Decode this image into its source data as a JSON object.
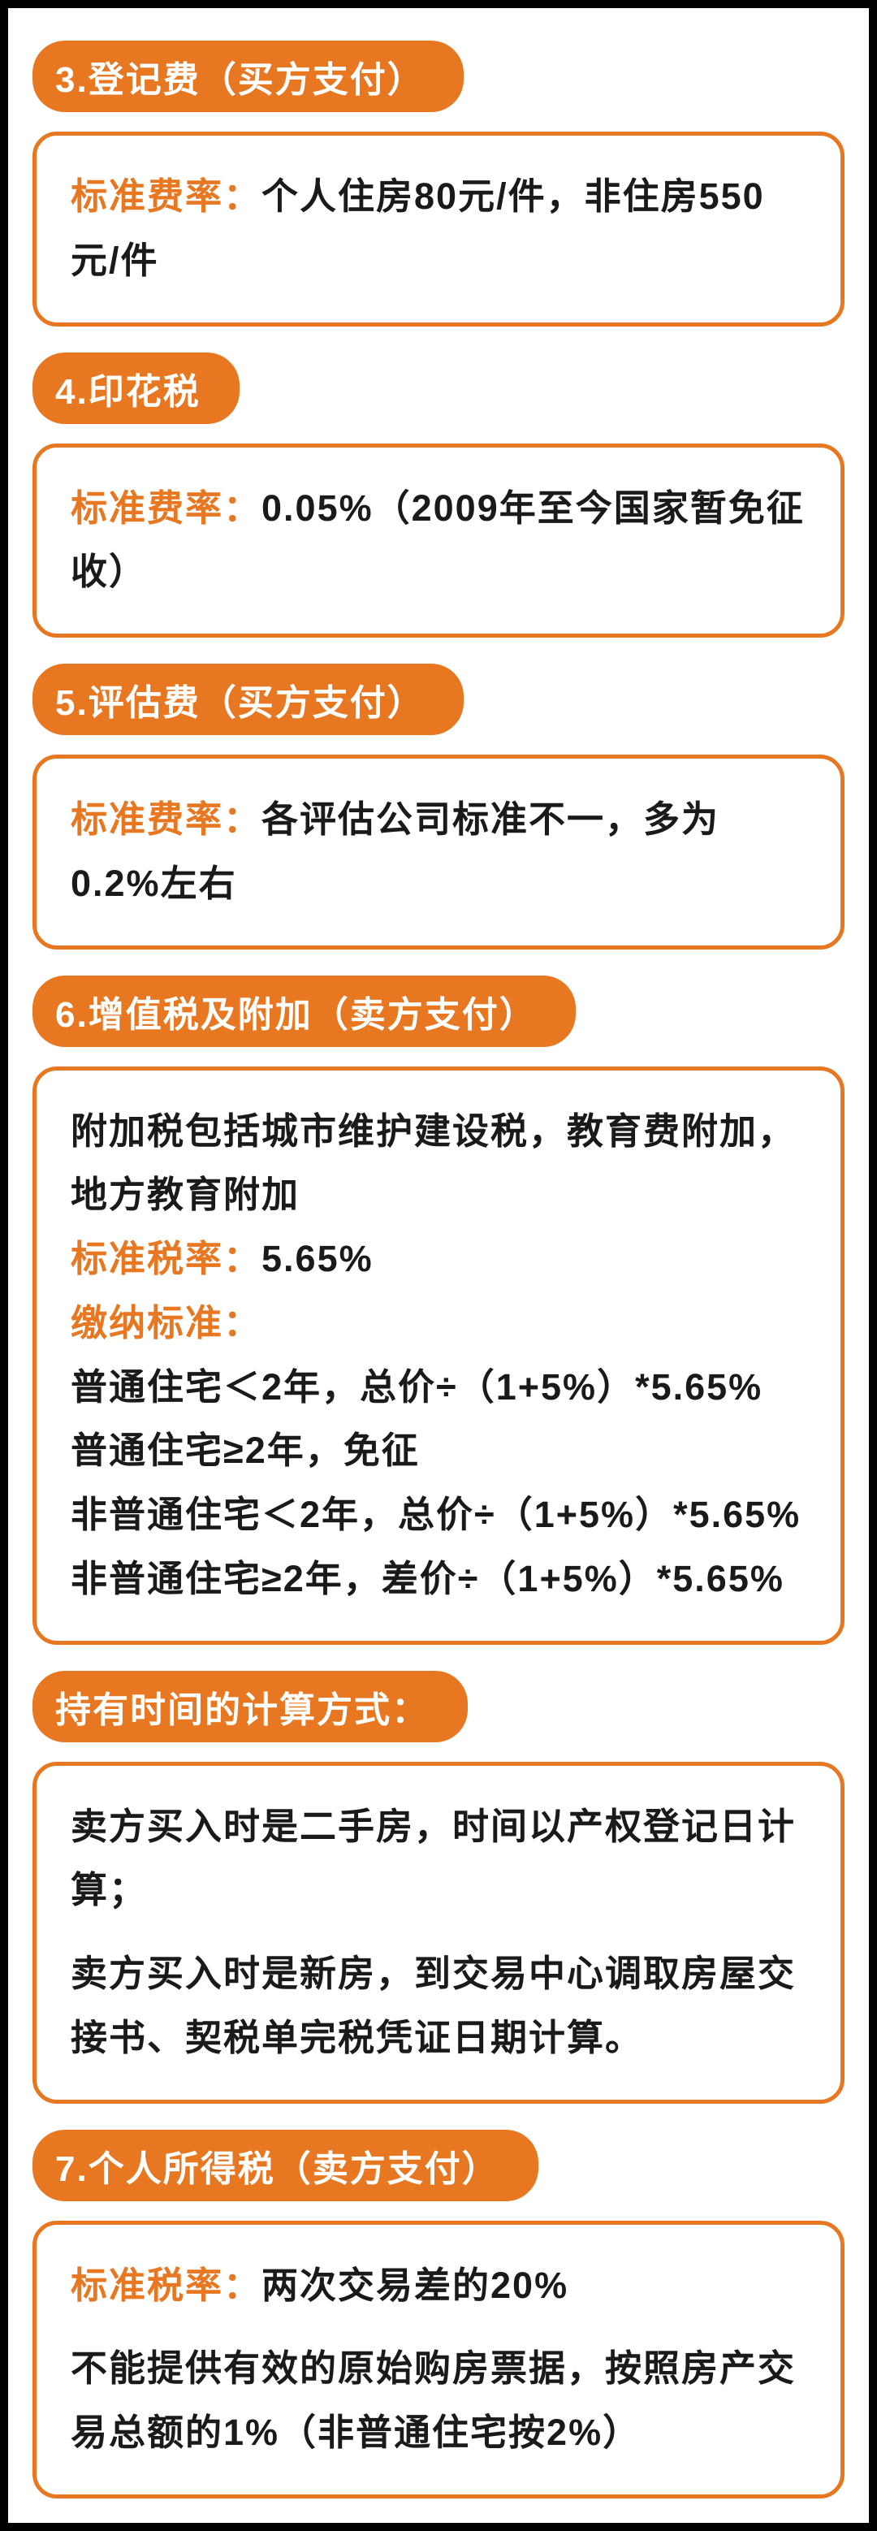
{
  "colors": {
    "accent": "#e87722",
    "text": "#1a1a1a",
    "header_text": "#ffffff",
    "border_outer": "#000000",
    "background": "#ffffff"
  },
  "typography": {
    "header_fontsize": 44,
    "body_fontsize": 45,
    "font_weight": 700
  },
  "sections": [
    {
      "header": "3.登记费（买方支付）",
      "blocks": [
        {
          "rate_label": "标准费率：",
          "rate_text": "个人住房80元/件，非住房550元/件"
        }
      ]
    },
    {
      "header": "4.印花税",
      "blocks": [
        {
          "rate_label": "标准费率：",
          "rate_text": "0.05%（2009年至今国家暂免征收）"
        }
      ]
    },
    {
      "header": "5.评估费（买方支付）",
      "blocks": [
        {
          "rate_label": "标准费率：",
          "rate_text": "各评估公司标准不一，多为0.2%左右"
        }
      ]
    },
    {
      "header": "6.增值税及附加（卖方支付）",
      "blocks": [
        {
          "intro": "附加税包括城市维护建设税，教育费附加，地方教育附加",
          "rate_label": "标准税率：",
          "rate_text": "5.65%",
          "std_label": "缴纳标准：",
          "lines": [
            "普通住宅＜2年，总价÷（1+5%）*5.65%",
            "普通住宅≥2年，免征",
            "非普通住宅＜2年，总价÷（1+5%）*5.65%",
            "非普通住宅≥2年，差价÷（1+5%）*5.65%"
          ]
        }
      ]
    },
    {
      "header": "持有时间的计算方式：",
      "blocks": [
        {
          "paras": [
            "卖方买入时是二手房，时间以产权登记日计算；",
            "卖方买入时是新房，到交易中心调取房屋交接书、契税单完税凭证日期计算。"
          ]
        }
      ]
    },
    {
      "header": "7.个人所得税（卖方支付）",
      "blocks": [
        {
          "rate_label": "标准税率：",
          "rate_text": "两次交易差的20%",
          "paras": [
            "不能提供有效的原始购房票据，按照房产交易总额的1%（非普通住宅按2%）"
          ]
        }
      ]
    }
  ]
}
